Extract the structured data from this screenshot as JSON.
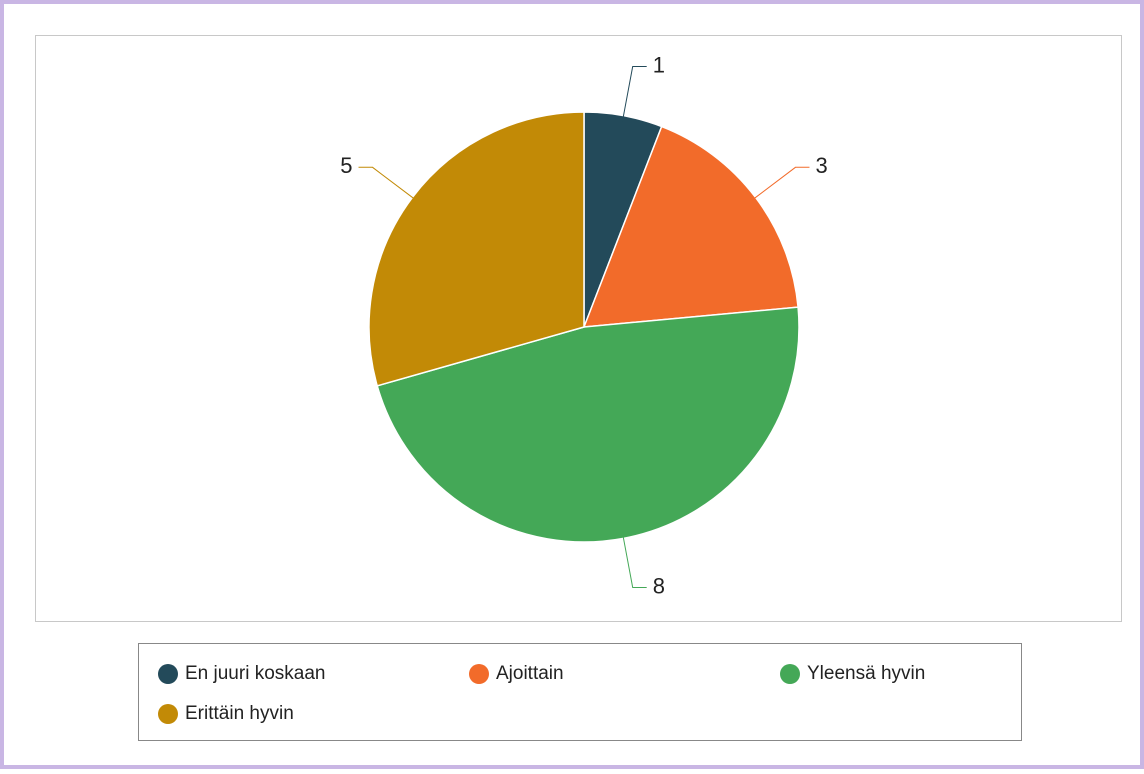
{
  "chart_data": {
    "type": "pie",
    "categories": [
      "En juuri koskaan",
      "Ajoittain",
      "Yleensä hyvin",
      "Erittäin hyvin"
    ],
    "values": [
      1,
      3,
      8,
      5
    ],
    "colors": [
      "#234a5a",
      "#f26b2a",
      "#44a857",
      "#c28a06"
    ]
  }
}
